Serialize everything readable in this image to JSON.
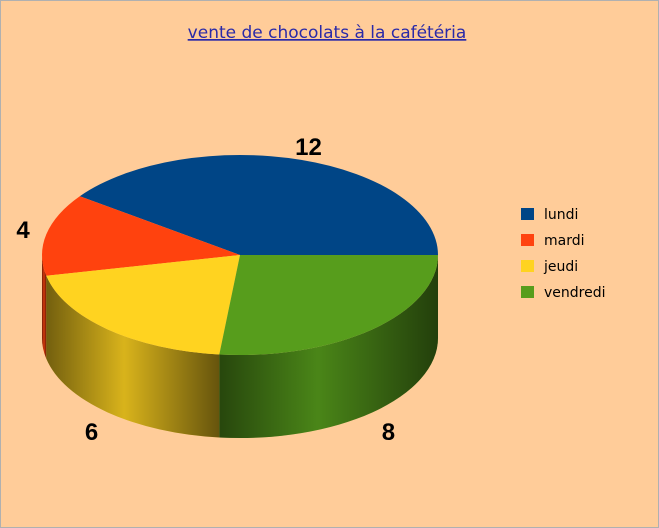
{
  "chart_data": {
    "type": "pie3d",
    "title": "vente de chocolats à la cafétéria",
    "categories": [
      "lundi",
      "mardi",
      "jeudi",
      "vendredi"
    ],
    "values": [
      12,
      4,
      6,
      8
    ],
    "colors": [
      "#004586",
      "#ff420e",
      "#ffd320",
      "#579d1c"
    ],
    "legend": "right"
  }
}
